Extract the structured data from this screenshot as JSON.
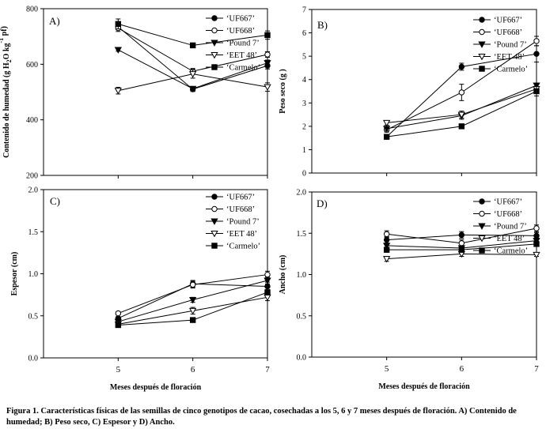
{
  "chart_data": [
    {
      "type": "line",
      "panel_label": "A)",
      "ylabel_main": "Contenido de humedad (g H",
      "ylabel_sub": "2",
      "ylabel_rest": "O kg",
      "ylabel_sup": "-1",
      "ylabel_end": " pf)",
      "xlabel": "",
      "x": [
        5,
        6,
        7
      ],
      "ylim": [
        200,
        800
      ],
      "yticks": [
        200,
        400,
        600,
        800
      ],
      "xtick_labels": [
        "",
        "",
        ""
      ],
      "legend": [
        "‘UF667’",
        "‘UF668’",
        "‘Pound 7’",
        "‘EET 48’",
        "‘Carmelo’"
      ],
      "series": [
        {
          "name": "‘UF667’",
          "marker": "circle-filled",
          "values": [
            735,
            510,
            595
          ],
          "errors": [
            10,
            8,
            12
          ]
        },
        {
          "name": "‘UF668’",
          "marker": "circle-open",
          "values": [
            730,
            575,
            635
          ],
          "errors": [
            12,
            10,
            10
          ]
        },
        {
          "name": "‘Pound 7’",
          "marker": "tri-down-filled",
          "values": [
            652,
            512,
            605
          ],
          "errors": [
            5,
            8,
            10
          ]
        },
        {
          "name": "‘EET 48’",
          "marker": "tri-down-open",
          "values": [
            505,
            565,
            518
          ],
          "errors": [
            12,
            15,
            15
          ]
        },
        {
          "name": "‘Carmelo’",
          "marker": "square-filled",
          "values": [
            745,
            668,
            705
          ],
          "errors": [
            18,
            5,
            15
          ]
        }
      ]
    },
    {
      "type": "line",
      "panel_label": "B)",
      "ylabel_main": "Peso seco (g )",
      "xlabel": "",
      "x": [
        5,
        6,
        7
      ],
      "ylim": [
        0,
        7
      ],
      "yticks": [
        0,
        1,
        2,
        3,
        4,
        5,
        6,
        7
      ],
      "xtick_labels": [
        "",
        "",
        ""
      ],
      "legend": [
        "‘UF667’",
        "‘UF668’",
        "‘Pound 7’",
        "‘EET 48’",
        "‘Carmelo’"
      ],
      "series": [
        {
          "name": "‘UF667’",
          "marker": "circle-filled",
          "values": [
            1.55,
            4.55,
            5.1
          ],
          "errors": [
            0.05,
            0.15,
            0.35
          ]
        },
        {
          "name": "‘UF668’",
          "marker": "circle-open",
          "values": [
            1.85,
            3.45,
            5.65
          ],
          "errors": [
            0.1,
            0.35,
            0.2
          ]
        },
        {
          "name": "‘Pound 7’",
          "marker": "tri-down-filled",
          "values": [
            1.9,
            2.45,
            3.75
          ],
          "errors": [
            0.1,
            0.15,
            0.1
          ]
        },
        {
          "name": "‘EET 48’",
          "marker": "tri-down-open",
          "values": [
            2.15,
            2.5,
            3.6
          ],
          "errors": [
            0.1,
            0.15,
            0.1
          ]
        },
        {
          "name": "‘Carmelo’",
          "marker": "square-filled",
          "values": [
            1.55,
            2.0,
            3.5
          ],
          "errors": [
            0.05,
            0.05,
            0.2
          ]
        }
      ]
    },
    {
      "type": "line",
      "panel_label": "C)",
      "ylabel_main": "Espesor (cm)",
      "xlabel": "Meses después de floración",
      "x": [
        5,
        6,
        7
      ],
      "ylim": [
        0,
        2
      ],
      "yticks": [
        "0.0",
        "0.5",
        "1.0",
        "1.5",
        "2.0"
      ],
      "xtick_labels": [
        "5",
        "6",
        "7"
      ],
      "legend": [
        "‘UF667’",
        "‘UF668’",
        "‘Pound 7’",
        "‘EET 48’",
        "‘Carmelo’"
      ],
      "series": [
        {
          "name": "‘UF667’",
          "marker": "circle-filled",
          "values": [
            0.47,
            0.88,
            0.85
          ],
          "errors": [
            0.02,
            0.04,
            0.05
          ]
        },
        {
          "name": "‘UF668’",
          "marker": "circle-open",
          "values": [
            0.53,
            0.87,
            0.99
          ],
          "errors": [
            0.02,
            0.04,
            0.04
          ]
        },
        {
          "name": "‘Pound 7’",
          "marker": "tri-down-filled",
          "values": [
            0.43,
            0.69,
            0.92
          ],
          "errors": [
            0.02,
            0.03,
            0.04
          ]
        },
        {
          "name": "‘EET 48’",
          "marker": "tri-down-open",
          "values": [
            0.4,
            0.56,
            0.72
          ],
          "errors": [
            0.02,
            0.04,
            0.04
          ]
        },
        {
          "name": "‘Carmelo’",
          "marker": "square-filled",
          "values": [
            0.39,
            0.45,
            0.78
          ],
          "errors": [
            0.01,
            0.02,
            0.03
          ]
        }
      ]
    },
    {
      "type": "line",
      "panel_label": "D)",
      "ylabel_main": "Ancho (cm)",
      "xlabel": "Meses después de floración",
      "x": [
        5,
        6,
        7
      ],
      "ylim": [
        0,
        2
      ],
      "yticks": [
        "0.0",
        "0.5",
        "1.0",
        "1.5",
        "2.0"
      ],
      "xtick_labels": [
        "5",
        "6",
        "7"
      ],
      "legend": [
        "‘UF667’",
        "‘UF668’",
        "‘Pound 7’",
        "‘EET 48’",
        "‘Carmelo’"
      ],
      "series": [
        {
          "name": "‘UF667’",
          "marker": "circle-filled",
          "values": [
            1.42,
            1.48,
            1.47
          ],
          "errors": [
            0.04,
            0.04,
            0.04
          ]
        },
        {
          "name": "‘UF668’",
          "marker": "circle-open",
          "values": [
            1.49,
            1.38,
            1.56
          ],
          "errors": [
            0.04,
            0.04,
            0.04
          ]
        },
        {
          "name": "‘Pound 7’",
          "marker": "tri-down-filled",
          "values": [
            1.35,
            1.32,
            1.41
          ],
          "errors": [
            0.03,
            0.03,
            0.03
          ]
        },
        {
          "name": "‘EET 48’",
          "marker": "tri-down-open",
          "values": [
            1.19,
            1.25,
            1.24
          ],
          "errors": [
            0.03,
            0.03,
            0.02
          ]
        },
        {
          "name": "‘Carmelo’",
          "marker": "square-filled",
          "values": [
            1.3,
            1.3,
            1.37
          ],
          "errors": [
            0.03,
            0.03,
            0.03
          ]
        }
      ]
    }
  ],
  "caption": {
    "text": "Figura 1. Características físicas de las semillas de cinco genotipos de cacao, cosechadas a los 5, 6 y 7 meses después de floración. A) Contenido de humedad; B) Peso seco, C) Espesor y D) Ancho."
  }
}
